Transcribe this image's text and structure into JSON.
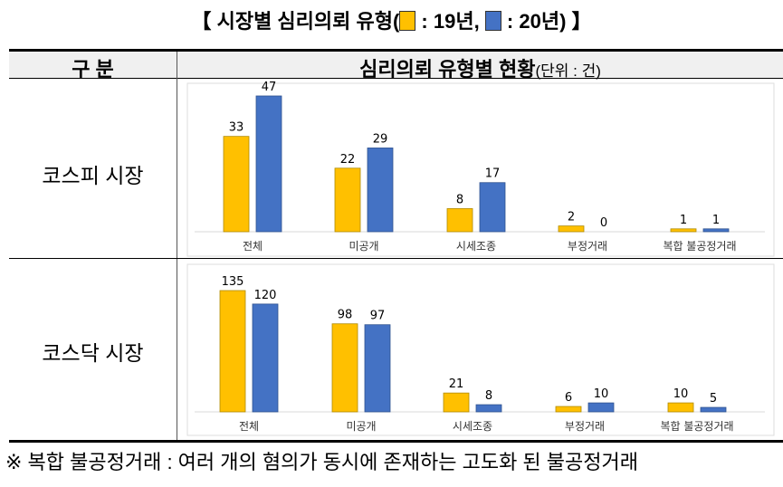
{
  "title": {
    "prefix": "【 시장별 심리의뢰 유형(",
    "legend_19": " : 19년, ",
    "legend_20": " : 20년) 】"
  },
  "header": {
    "col1": "구 분",
    "col2": "심리의뢰 유형별 현황",
    "unit": "(단위 : 건)"
  },
  "rows": [
    {
      "label": "코스피 시장"
    },
    {
      "label": "코스닥 시장"
    }
  ],
  "footnote": "※ 복합 불공정거래 : 여러 개의 혐의가 동시에 존재하는 고도화 된 불공정거래",
  "colors": {
    "y19": "#FFC000",
    "y20": "#4472C4"
  },
  "chart_data": [
    {
      "type": "bar",
      "title": "코스피 시장",
      "categories": [
        "전체",
        "미공개",
        "시세조종",
        "부정거래",
        "복합 불공정거래"
      ],
      "series": [
        {
          "name": "19년",
          "values": [
            33,
            22,
            8,
            2,
            1
          ]
        },
        {
          "name": "20년",
          "values": [
            47,
            29,
            17,
            0,
            1
          ]
        }
      ],
      "grid": false,
      "legend": "title"
    },
    {
      "type": "bar",
      "title": "코스닥 시장",
      "categories": [
        "전체",
        "미공개",
        "시세조종",
        "부정거래",
        "복합 불공정거래"
      ],
      "series": [
        {
          "name": "19년",
          "values": [
            135,
            98,
            21,
            6,
            10
          ]
        },
        {
          "name": "20년",
          "values": [
            120,
            97,
            8,
            10,
            5
          ]
        }
      ],
      "grid": false,
      "legend": "title"
    }
  ]
}
